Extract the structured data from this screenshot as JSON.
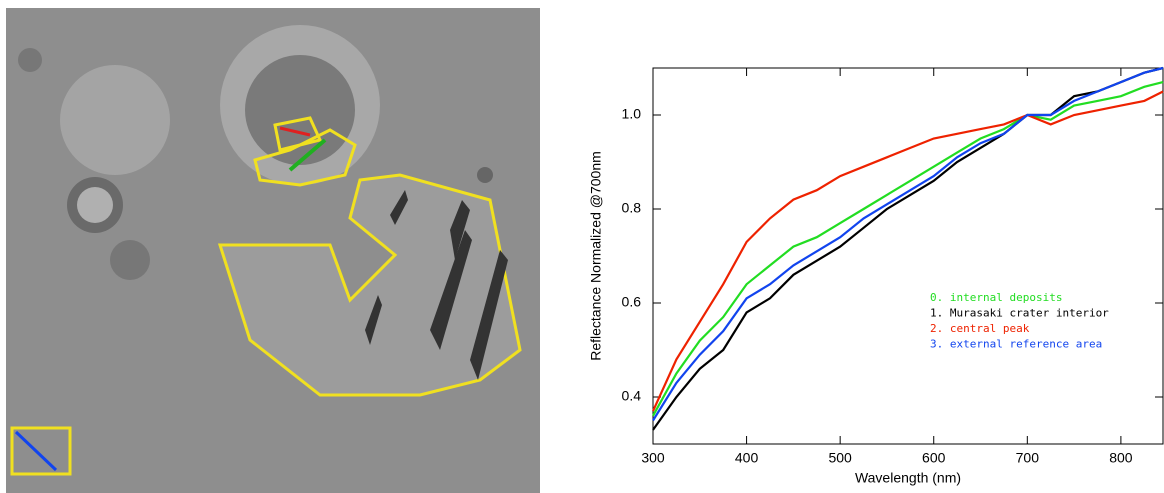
{
  "chart_data": {
    "type": "line",
    "x_label": "Wavelength (nm)",
    "y_label": "Reflectance Normalized @700nm",
    "x": [
      300,
      325,
      350,
      375,
      400,
      425,
      450,
      475,
      500,
      525,
      550,
      575,
      600,
      625,
      650,
      675,
      700,
      725,
      750,
      775,
      800,
      825,
      845
    ],
    "series": [
      {
        "name": "0. internal deposits",
        "color": "#22dd22",
        "values": [
          0.36,
          0.45,
          0.52,
          0.57,
          0.64,
          0.68,
          0.72,
          0.74,
          0.77,
          0.8,
          0.83,
          0.86,
          0.89,
          0.92,
          0.95,
          0.97,
          1.0,
          0.99,
          1.02,
          1.03,
          1.04,
          1.06,
          1.07
        ]
      },
      {
        "name": "1. Murasaki crater interior",
        "color": "#000000",
        "values": [
          0.33,
          0.4,
          0.46,
          0.5,
          0.58,
          0.61,
          0.66,
          0.69,
          0.72,
          0.76,
          0.8,
          0.83,
          0.86,
          0.9,
          0.93,
          0.96,
          1.0,
          1.0,
          1.04,
          1.05,
          1.07,
          1.09,
          1.1
        ]
      },
      {
        "name": "2. central peak",
        "color": "#ee2200",
        "values": [
          0.37,
          0.48,
          0.56,
          0.64,
          0.73,
          0.78,
          0.82,
          0.84,
          0.87,
          0.89,
          0.91,
          0.93,
          0.95,
          0.96,
          0.97,
          0.98,
          1.0,
          0.98,
          1.0,
          1.01,
          1.02,
          1.03,
          1.05
        ]
      },
      {
        "name": "3. external reference area",
        "color": "#1144ee",
        "values": [
          0.35,
          0.43,
          0.49,
          0.54,
          0.61,
          0.64,
          0.68,
          0.71,
          0.74,
          0.78,
          0.81,
          0.84,
          0.87,
          0.91,
          0.94,
          0.96,
          1.0,
          1.0,
          1.03,
          1.05,
          1.07,
          1.09,
          1.1
        ]
      }
    ],
    "xlim": [
      300,
      845
    ],
    "xticks": [
      300,
      400,
      500,
      600,
      700,
      800
    ],
    "ylim": [
      0.3,
      1.1
    ],
    "yticks": [
      0.4,
      0.6,
      0.8,
      {
        "value": 1,
        "label": "1.0"
      }
    ]
  }
}
